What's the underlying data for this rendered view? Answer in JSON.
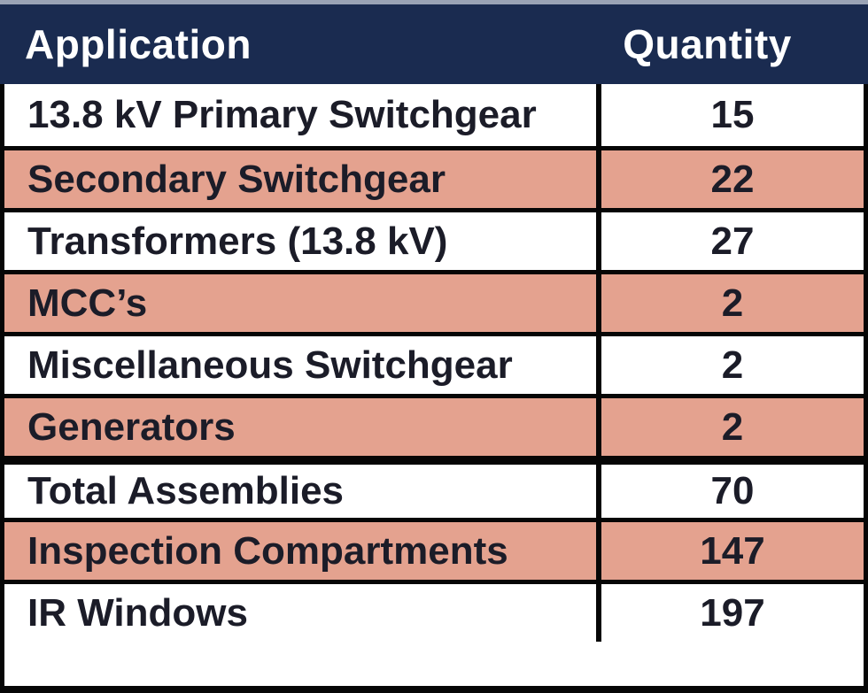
{
  "table": {
    "columns": [
      {
        "label": "Application"
      },
      {
        "label": "Quantity"
      }
    ],
    "rows": [
      {
        "application": "13.8 kV Primary Switchgear",
        "quantity": "15",
        "highlighted": false,
        "thick_border_above": false
      },
      {
        "application": "Secondary Switchgear",
        "quantity": "22",
        "highlighted": true,
        "thick_border_above": false
      },
      {
        "application": "Transformers (13.8 kV)",
        "quantity": "27",
        "highlighted": false,
        "thick_border_above": false
      },
      {
        "application": "MCC’s",
        "quantity": "2",
        "highlighted": true,
        "thick_border_above": false
      },
      {
        "application": "Miscellaneous Switchgear",
        "quantity": "2",
        "highlighted": false,
        "thick_border_above": false
      },
      {
        "application": "Generators",
        "quantity": "2",
        "highlighted": true,
        "thick_border_above": false
      },
      {
        "application": "Total Assemblies",
        "quantity": "70",
        "highlighted": false,
        "thick_border_above": true
      },
      {
        "application": "Inspection Compartments",
        "quantity": "147",
        "highlighted": true,
        "thick_border_above": false
      },
      {
        "application": "IR Windows",
        "quantity": "197",
        "highlighted": false,
        "thick_border_above": false
      }
    ]
  },
  "chart_data": {
    "type": "table",
    "columns": [
      "Application",
      "Quantity"
    ],
    "rows": [
      [
        "13.8 kV Primary Switchgear",
        15
      ],
      [
        "Secondary Switchgear",
        22
      ],
      [
        "Transformers (13.8 kV)",
        27
      ],
      [
        "MCC’s",
        2
      ],
      [
        "Miscellaneous Switchgear",
        2
      ],
      [
        "Generators",
        2
      ],
      [
        "Total Assemblies",
        70
      ],
      [
        "Inspection Compartments",
        147
      ],
      [
        "IR Windows",
        197
      ]
    ],
    "title": "",
    "layout_hints": {
      "header_style": "dark navy band, white bold text",
      "zebra_striping": "alternating white and salmon rows starting white",
      "section_break": "thick black rule above Total Assemblies row"
    }
  },
  "colors": {
    "header_bg": "#1a2b50",
    "header_text": "#ffffff",
    "row_highlight_bg": "#e4a28f",
    "row_default_bg": "#ffffff",
    "border_black": "#060606",
    "body_text": "#1b1c28",
    "top_strip": "#9aa3b5"
  }
}
